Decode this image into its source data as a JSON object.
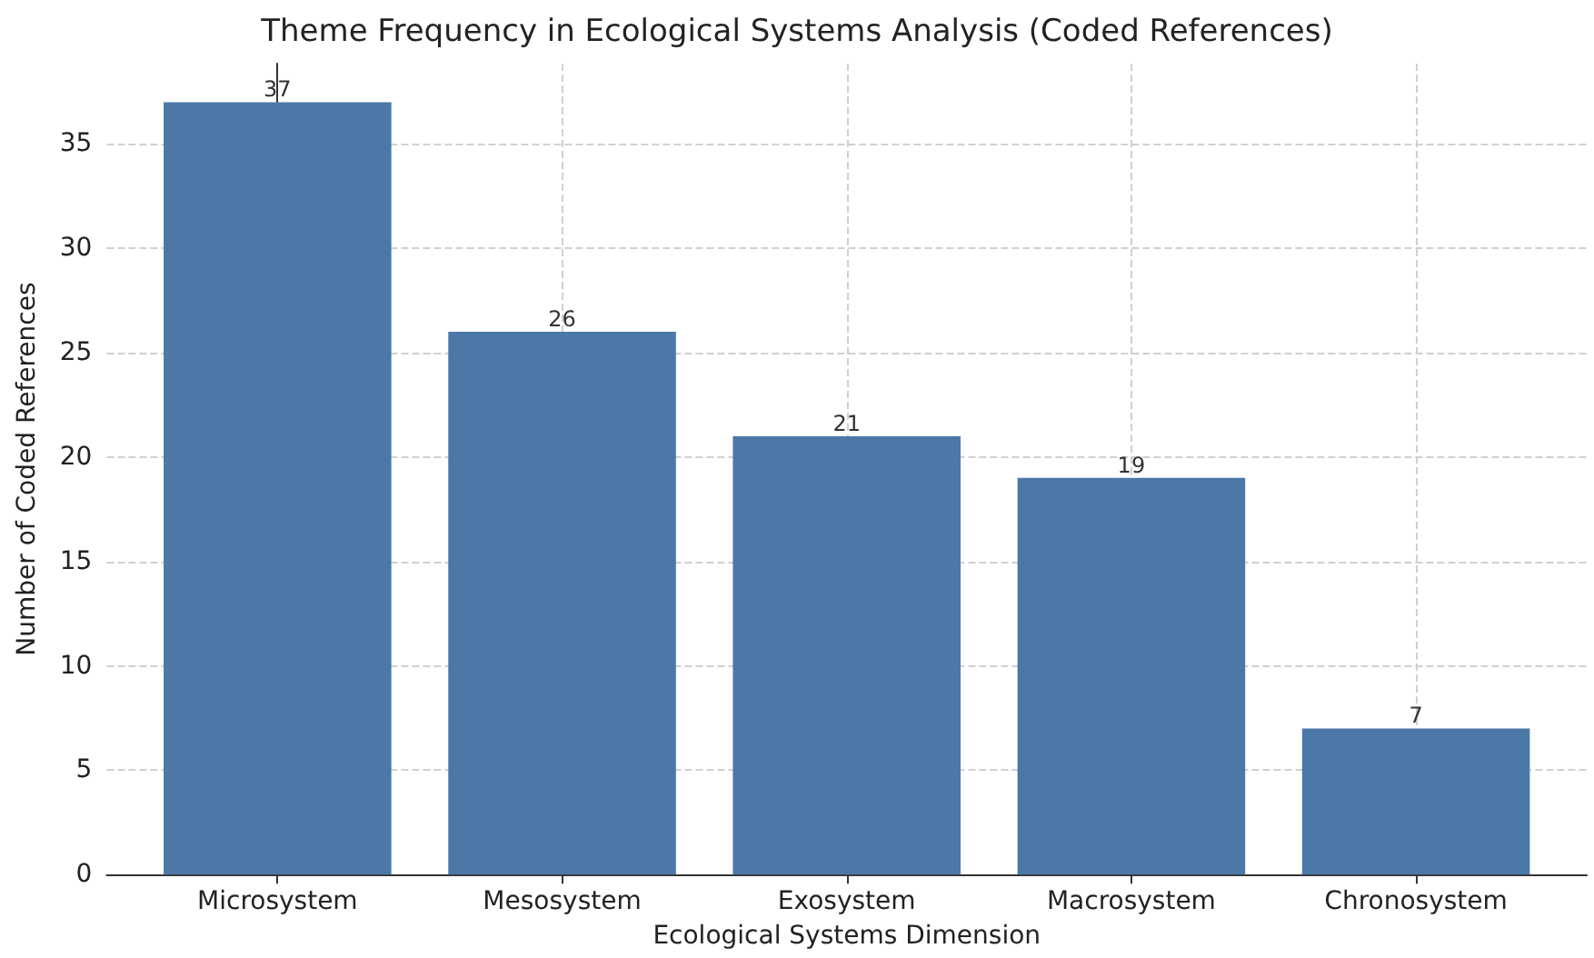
{
  "chart_data": {
    "type": "bar",
    "title": "Theme Frequency in Ecological Systems Analysis (Coded References)",
    "xlabel": "Ecological Systems Dimension",
    "ylabel": "Number of Coded References",
    "categories": [
      "Microsystem",
      "Mesosystem",
      "Exosystem",
      "Macrosystem",
      "Chronosystem"
    ],
    "values": [
      37,
      26,
      21,
      19,
      7
    ],
    "color": "#4c78a8",
    "ylim": [
      0,
      38.85
    ],
    "yticks": [
      0,
      5,
      10,
      15,
      20,
      25,
      30,
      35
    ],
    "grid": true,
    "data_labels": true
  }
}
